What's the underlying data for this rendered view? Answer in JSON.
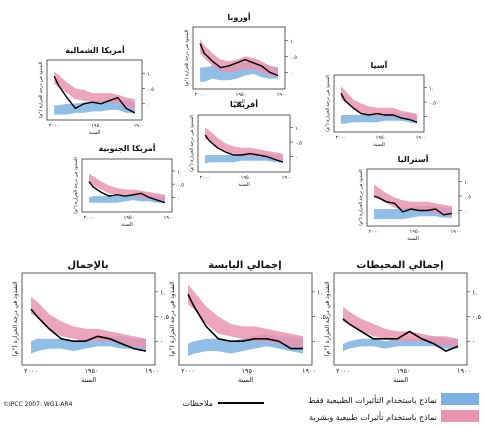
{
  "panels": [
    {
      "title": "أوروبا",
      "xlabel": "السنة",
      "ylabel": "الشذوذ في درجة الحرارة (°م)",
      "ticks_y": [
        "١.",
        "٠.٥",
        "٠"
      ],
      "ticks_x": [
        "٢٠٠٠",
        "١٩٥٠",
        "١٩٠٠"
      ]
    },
    {
      "title": "أمريكا الشمالية",
      "xlabel": "السنة",
      "ylabel": "الشذوذ في درجة الحرارة (°م)",
      "ticks_y": [
        "١.",
        "٠.٥",
        "٠"
      ],
      "ticks_x": [
        "٢٠٠٠",
        "١٩٥٠",
        "١٩٠٠"
      ]
    },
    {
      "title": "آسيا",
      "xlabel": "السنة",
      "ylabel": "الشذوذ في درجة الحرارة (°م)",
      "ticks_y": [
        "١.",
        "٠.٥",
        "٠"
      ],
      "ticks_x": [
        "٢٠٠٠",
        "١٩٥٠",
        "١٩٠٠"
      ]
    },
    {
      "title": "أفريقيا",
      "xlabel": "السنة",
      "ylabel": "الشذوذ في درجة الحرارة (°م)",
      "ticks_y": [
        "١.",
        "٠.٥",
        "٠"
      ],
      "ticks_x": [
        "٢٠٠٠",
        "١٩٥٠",
        "١٩٠٠"
      ]
    },
    {
      "title": "أمريكا الجنوبية",
      "xlabel": "السنة",
      "ylabel": "الشذوذ في درجة الحرارة (°م)",
      "ticks_y": [
        "١.",
        "٠.٥",
        "٠"
      ],
      "ticks_x": [
        "٢٠٠٠",
        "١٩٥٠",
        "١٩٠٠"
      ]
    },
    {
      "title": "أستراليا",
      "xlabel": "السنة",
      "ylabel": "الشذوذ في درجة الحرارة (°م)",
      "ticks_y": [
        "١.",
        "٠.٥",
        "٠"
      ],
      "ticks_x": [
        "٢٠٠٠",
        "١٩٥٠",
        "١٩٠٠"
      ]
    },
    {
      "title": "بالإجمال",
      "xlabel": "السنة",
      "ylabel": "الشذوذ في درجة الحرارة (°م)",
      "ticks_y": [
        "١.",
        "٠.٥",
        "٠"
      ],
      "ticks_x": [
        "٢٠٠٠",
        "١٩٥٠",
        "١٩٠٠"
      ]
    },
    {
      "title": "إجمالي اليابسة",
      "xlabel": "السنة",
      "ylabel": "الشذوذ في درجة الحرارة (°م)",
      "ticks_y": [
        "١.",
        "٠.٥",
        "٠"
      ],
      "ticks_x": [
        "٢٠٠٠",
        "١٩٥٠",
        "١٩٠٠"
      ]
    },
    {
      "title": "إجمالي المحيطات",
      "xlabel": "السنة",
      "ylabel": "الشذوذ في درجة الحرارة (°م)",
      "ticks_y": [
        "١.",
        "٠.٥",
        "٠"
      ],
      "ticks_x": [
        "٢٠٠٠",
        "١٩٥٠",
        "١٩٠٠"
      ]
    }
  ],
  "legend": {
    "observations": "ملاحظات",
    "natural_only": "نماذج باستخدام التأثيرات الطبيعية فقط",
    "natural_and_human": "نماذج باستخدام تأثيرات طبيعية وبشرية"
  },
  "credit": "©IPCC 2007: WG1-AR4",
  "colors": {
    "blue_band": "#7fb1e0",
    "pink_band": "#e795b0",
    "observed": "#000000",
    "frame": "#333333"
  },
  "chart_data": [
    {
      "type": "line",
      "name": "أوروبا",
      "x": [
        1905,
        1915,
        1925,
        1935,
        1945,
        1955,
        1965,
        1975,
        1985,
        1995,
        2000
      ],
      "observed": [
        -0.1,
        0.0,
        0.2,
        0.3,
        0.4,
        0.3,
        0.2,
        0.15,
        0.35,
        0.6,
        0.9
      ],
      "natural_low": [
        -0.2,
        -0.2,
        -0.15,
        -0.05,
        -0.1,
        -0.2,
        -0.25,
        -0.25,
        -0.2,
        -0.3,
        -0.3
      ],
      "natural_high": [
        0.15,
        0.2,
        0.25,
        0.35,
        0.3,
        0.25,
        0.15,
        0.2,
        0.2,
        0.15,
        0.15
      ],
      "human_low": [
        -0.15,
        -0.1,
        0.0,
        0.1,
        0.1,
        0.05,
        0.0,
        0.05,
        0.2,
        0.45,
        0.6
      ],
      "human_high": [
        0.15,
        0.2,
        0.35,
        0.45,
        0.5,
        0.4,
        0.35,
        0.4,
        0.6,
        0.85,
        1.05
      ],
      "ylim": [
        -0.4,
        1.3
      ]
    },
    {
      "type": "line",
      "name": "أمريكا الشمالية",
      "x": [
        1905,
        1915,
        1925,
        1935,
        1945,
        1955,
        1965,
        1975,
        1985,
        1995,
        2000
      ],
      "observed": [
        -0.3,
        -0.15,
        0.2,
        0.1,
        0.0,
        0.05,
        0.0,
        -0.15,
        0.2,
        0.6,
        0.9
      ],
      "natural_low": [
        -0.3,
        -0.3,
        -0.2,
        -0.2,
        -0.25,
        -0.25,
        -0.3,
        -0.3,
        -0.35,
        -0.35,
        -0.35
      ],
      "natural_high": [
        0.05,
        0.1,
        0.15,
        0.15,
        0.1,
        0.05,
        0.05,
        0.0,
        0.0,
        -0.05,
        -0.05
      ],
      "human_low": [
        -0.2,
        -0.1,
        0.0,
        0.05,
        0.05,
        0.05,
        0.1,
        0.15,
        0.35,
        0.55,
        0.65
      ],
      "human_high": [
        0.15,
        0.2,
        0.3,
        0.35,
        0.35,
        0.35,
        0.45,
        0.5,
        0.7,
        0.95,
        1.05
      ],
      "ylim": [
        -0.4,
        1.3
      ]
    },
    {
      "type": "line",
      "name": "آسيا",
      "x": [
        1905,
        1915,
        1925,
        1935,
        1945,
        1955,
        1965,
        1975,
        1985,
        1995,
        2000
      ],
      "observed": [
        -0.2,
        -0.1,
        -0.05,
        0.05,
        0.05,
        0.1,
        0.05,
        0.1,
        0.3,
        0.55,
        0.8
      ],
      "natural_low": [
        -0.25,
        -0.2,
        -0.15,
        -0.15,
        -0.15,
        -0.2,
        -0.2,
        -0.2,
        -0.2,
        -0.25,
        -0.25
      ],
      "natural_high": [
        0.05,
        0.1,
        0.1,
        0.15,
        0.1,
        0.05,
        0.05,
        0.05,
        0.05,
        0.05,
        0.05
      ],
      "human_low": [
        -0.2,
        -0.1,
        -0.05,
        0.0,
        0.0,
        0.0,
        0.05,
        0.1,
        0.3,
        0.5,
        0.6
      ],
      "human_high": [
        0.1,
        0.15,
        0.2,
        0.3,
        0.3,
        0.3,
        0.35,
        0.45,
        0.6,
        0.9,
        1.05
      ],
      "ylim": [
        -0.4,
        1.3
      ]
    },
    {
      "type": "line",
      "name": "أفريقيا",
      "x": [
        1905,
        1915,
        1925,
        1935,
        1945,
        1955,
        1965,
        1975,
        1985,
        1995,
        2000
      ],
      "observed": [
        -0.2,
        -0.1,
        0.0,
        0.05,
        0.1,
        0.05,
        0.05,
        0.15,
        0.3,
        0.55,
        0.75
      ],
      "natural_low": [
        -0.2,
        -0.2,
        -0.15,
        -0.15,
        -0.15,
        -0.15,
        -0.2,
        -0.2,
        -0.2,
        -0.2,
        -0.25
      ],
      "natural_high": [
        0.05,
        0.05,
        0.1,
        0.1,
        0.1,
        0.05,
        0.05,
        0.05,
        0.05,
        0.05,
        0.05
      ],
      "human_low": [
        -0.15,
        -0.1,
        -0.05,
        0.0,
        0.0,
        0.05,
        0.1,
        0.15,
        0.3,
        0.55,
        0.6
      ],
      "human_high": [
        0.1,
        0.15,
        0.2,
        0.25,
        0.3,
        0.3,
        0.35,
        0.45,
        0.65,
        0.9,
        1.0
      ],
      "ylim": [
        -0.4,
        1.3
      ]
    },
    {
      "type": "line",
      "name": "أمريكا الجنوبية",
      "x": [
        1905,
        1915,
        1925,
        1935,
        1945,
        1955,
        1965,
        1975,
        1985,
        1995,
        2000
      ],
      "observed": [
        -0.2,
        -0.1,
        0.0,
        0.15,
        0.1,
        0.05,
        0.1,
        0.05,
        0.2,
        0.4,
        0.6
      ],
      "natural_low": [
        -0.2,
        -0.2,
        -0.15,
        -0.15,
        -0.1,
        -0.15,
        -0.2,
        -0.2,
        -0.2,
        -0.2,
        -0.2
      ],
      "natural_high": [
        0.05,
        0.05,
        0.1,
        0.1,
        0.1,
        0.05,
        0.05,
        0.05,
        0.05,
        0.05,
        0.0
      ],
      "human_low": [
        -0.15,
        -0.1,
        -0.05,
        0.0,
        0.05,
        0.05,
        0.1,
        0.15,
        0.3,
        0.45,
        0.55
      ],
      "human_high": [
        0.1,
        0.15,
        0.2,
        0.25,
        0.3,
        0.3,
        0.35,
        0.45,
        0.6,
        0.8,
        0.9
      ],
      "ylim": [
        -0.4,
        1.3
      ]
    },
    {
      "type": "line",
      "name": "أستراليا",
      "x": [
        1905,
        1915,
        1925,
        1935,
        1945,
        1955,
        1965,
        1975,
        1985,
        1995,
        2000
      ],
      "observed": [
        -0.1,
        -0.15,
        0.05,
        0.0,
        0.0,
        0.05,
        -0.05,
        0.25,
        0.3,
        0.45,
        0.5
      ],
      "natural_low": [
        -0.25,
        -0.25,
        -0.2,
        -0.2,
        -0.2,
        -0.25,
        -0.3,
        -0.3,
        -0.3,
        -0.3,
        -0.3
      ],
      "natural_high": [
        0.1,
        0.1,
        0.15,
        0.15,
        0.15,
        0.1,
        0.1,
        0.05,
        0.05,
        0.05,
        0.05
      ],
      "human_low": [
        -0.2,
        -0.15,
        -0.1,
        -0.05,
        0.0,
        0.0,
        0.05,
        0.1,
        0.25,
        0.4,
        0.45
      ],
      "human_high": [
        0.15,
        0.2,
        0.25,
        0.3,
        0.3,
        0.3,
        0.35,
        0.45,
        0.6,
        0.8,
        0.9
      ],
      "ylim": [
        -0.4,
        1.3
      ]
    },
    {
      "type": "line",
      "name": "بالإجمال",
      "x": [
        1905,
        1915,
        1925,
        1935,
        1945,
        1955,
        1965,
        1975,
        1985,
        1995,
        2000
      ],
      "observed": [
        -0.2,
        -0.15,
        -0.05,
        0.05,
        0.1,
        0.0,
        0.0,
        0.05,
        0.25,
        0.5,
        0.65
      ],
      "natural_low": [
        -0.2,
        -0.15,
        -0.15,
        -0.1,
        -0.1,
        -0.15,
        -0.2,
        -0.15,
        -0.15,
        -0.2,
        -0.25
      ],
      "natural_high": [
        0.05,
        0.05,
        0.1,
        0.1,
        0.1,
        0.05,
        0.0,
        0.05,
        0.05,
        0.05,
        0.0
      ],
      "human_low": [
        -0.15,
        -0.1,
        -0.05,
        0.0,
        0.0,
        0.0,
        0.05,
        0.1,
        0.25,
        0.5,
        0.55
      ],
      "human_high": [
        0.05,
        0.1,
        0.15,
        0.2,
        0.25,
        0.25,
        0.3,
        0.4,
        0.55,
        0.8,
        0.9
      ],
      "ylim": [
        -0.4,
        1.3
      ]
    },
    {
      "type": "line",
      "name": "إجمالي اليابسة",
      "x": [
        1905,
        1915,
        1925,
        1935,
        1945,
        1955,
        1965,
        1975,
        1985,
        1995,
        2000
      ],
      "observed": [
        -0.15,
        -0.15,
        0.0,
        0.05,
        0.05,
        0.0,
        0.0,
        0.05,
        0.3,
        0.7,
        0.95
      ],
      "natural_low": [
        -0.25,
        -0.2,
        -0.15,
        -0.1,
        -0.15,
        -0.2,
        -0.25,
        -0.2,
        -0.2,
        -0.25,
        -0.3
      ],
      "natural_high": [
        0.05,
        0.1,
        0.1,
        0.15,
        0.1,
        0.05,
        0.0,
        0.05,
        0.05,
        0.0,
        -0.05
      ],
      "human_low": [
        -0.15,
        -0.1,
        -0.05,
        0.0,
        0.0,
        0.05,
        0.1,
        0.15,
        0.35,
        0.65,
        0.75
      ],
      "human_high": [
        0.1,
        0.15,
        0.2,
        0.25,
        0.3,
        0.3,
        0.35,
        0.5,
        0.7,
        1.0,
        1.15
      ],
      "ylim": [
        -0.4,
        1.3
      ]
    },
    {
      "type": "line",
      "name": "إجمالي المحيطات",
      "x": [
        1905,
        1915,
        1925,
        1935,
        1945,
        1955,
        1965,
        1975,
        1985,
        1995,
        2000
      ],
      "observed": [
        -0.1,
        -0.2,
        -0.05,
        0.05,
        0.2,
        0.05,
        0.05,
        0.05,
        0.2,
        0.35,
        0.45
      ],
      "natural_low": [
        -0.15,
        -0.15,
        -0.1,
        -0.1,
        -0.1,
        -0.1,
        -0.15,
        -0.1,
        -0.1,
        -0.15,
        -0.2
      ],
      "natural_high": [
        0.05,
        0.05,
        0.1,
        0.05,
        0.05,
        0.05,
        0.0,
        0.05,
        0.05,
        0.0,
        -0.05
      ],
      "human_low": [
        -0.1,
        -0.1,
        -0.05,
        0.0,
        0.0,
        0.0,
        0.05,
        0.1,
        0.2,
        0.35,
        0.4
      ],
      "human_high": [
        0.05,
        0.1,
        0.1,
        0.15,
        0.2,
        0.2,
        0.25,
        0.35,
        0.45,
        0.6,
        0.7
      ],
      "ylim": [
        -0.4,
        1.3
      ]
    }
  ]
}
